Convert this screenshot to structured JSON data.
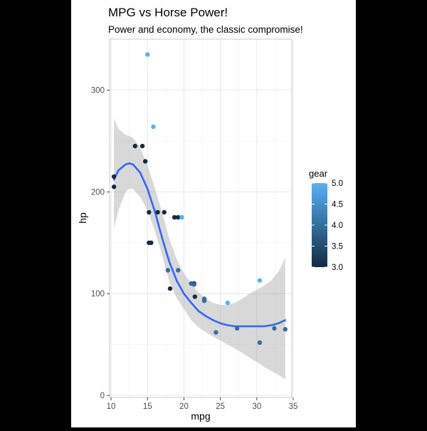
{
  "chart_data": {
    "type": "scatter",
    "title": "MPG vs Horse Power!",
    "subtitle": "Power and economy, the classic compromise!",
    "xlabel": "mpg",
    "ylabel": "hp",
    "xlim": [
      9.8,
      34.8
    ],
    "ylim": [
      -2,
      350
    ],
    "x_ticks": [
      10,
      15,
      20,
      25,
      30,
      35
    ],
    "y_ticks": [
      0,
      100,
      200,
      300
    ],
    "grid": true,
    "legend": {
      "title": "gear",
      "position": "right",
      "type": "colorbar",
      "range": [
        3.0,
        5.0
      ],
      "ticks": [
        3.0,
        3.5,
        4.0,
        4.5,
        5.0
      ],
      "tick_labels": [
        "3.0",
        "3.5",
        "4.0",
        "4.5",
        "5.0"
      ],
      "color_low": "#132b43",
      "color_high": "#56b1f7"
    },
    "points": [
      {
        "x": 21.0,
        "y": 110,
        "gear": 4
      },
      {
        "x": 21.0,
        "y": 110,
        "gear": 4
      },
      {
        "x": 22.8,
        "y": 93,
        "gear": 4
      },
      {
        "x": 21.4,
        "y": 110,
        "gear": 3
      },
      {
        "x": 18.7,
        "y": 175,
        "gear": 3
      },
      {
        "x": 18.1,
        "y": 105,
        "gear": 3
      },
      {
        "x": 14.3,
        "y": 245,
        "gear": 3
      },
      {
        "x": 24.4,
        "y": 62,
        "gear": 4
      },
      {
        "x": 22.8,
        "y": 95,
        "gear": 4
      },
      {
        "x": 19.2,
        "y": 123,
        "gear": 4
      },
      {
        "x": 17.8,
        "y": 123,
        "gear": 4
      },
      {
        "x": 16.4,
        "y": 180,
        "gear": 3
      },
      {
        "x": 17.3,
        "y": 180,
        "gear": 3
      },
      {
        "x": 15.2,
        "y": 180,
        "gear": 3
      },
      {
        "x": 10.4,
        "y": 205,
        "gear": 3
      },
      {
        "x": 10.4,
        "y": 215,
        "gear": 3
      },
      {
        "x": 14.7,
        "y": 230,
        "gear": 3
      },
      {
        "x": 32.4,
        "y": 66,
        "gear": 4
      },
      {
        "x": 30.4,
        "y": 52,
        "gear": 4
      },
      {
        "x": 33.9,
        "y": 65,
        "gear": 4
      },
      {
        "x": 21.5,
        "y": 97,
        "gear": 3
      },
      {
        "x": 15.5,
        "y": 150,
        "gear": 3
      },
      {
        "x": 15.2,
        "y": 150,
        "gear": 3
      },
      {
        "x": 13.3,
        "y": 245,
        "gear": 3
      },
      {
        "x": 19.2,
        "y": 175,
        "gear": 3
      },
      {
        "x": 27.3,
        "y": 66,
        "gear": 4
      },
      {
        "x": 26.0,
        "y": 91,
        "gear": 5
      },
      {
        "x": 30.4,
        "y": 113,
        "gear": 5
      },
      {
        "x": 15.8,
        "y": 264,
        "gear": 5
      },
      {
        "x": 19.7,
        "y": 175,
        "gear": 5
      },
      {
        "x": 15.0,
        "y": 335,
        "gear": 5
      },
      {
        "x": 21.4,
        "y": 109,
        "gear": 4
      }
    ],
    "smooth": {
      "method": "loess",
      "color": "#3366ff",
      "band_color": "#999999",
      "x": [
        10.4,
        11.0,
        12.0,
        12.5,
        13.0,
        14.0,
        15.0,
        16.0,
        17.0,
        18.0,
        19.0,
        20.0,
        21.0,
        22.0,
        23.0,
        24.0,
        25.0,
        26.0,
        27.0,
        28.0,
        29.0,
        30.0,
        31.0,
        32.0,
        33.0,
        33.9
      ],
      "y": [
        212,
        221,
        227,
        228,
        227,
        219,
        203,
        181,
        155,
        131,
        113,
        100,
        91,
        83,
        78,
        74,
        71,
        69,
        68,
        68,
        68,
        68,
        68,
        69,
        71,
        74
      ],
      "upper": [
        272,
        262,
        256,
        255,
        253,
        244,
        226,
        204,
        180,
        154,
        134,
        120,
        110,
        101,
        95,
        91,
        89,
        89,
        91,
        95,
        100,
        104,
        108,
        113,
        122,
        135
      ],
      "lower": [
        164,
        182,
        200,
        203,
        203,
        195,
        182,
        162,
        138,
        112,
        96,
        85,
        74,
        67,
        62,
        58,
        54,
        50,
        46,
        42,
        37,
        33,
        28,
        24,
        20,
        16
      ]
    }
  }
}
